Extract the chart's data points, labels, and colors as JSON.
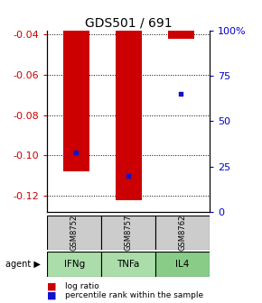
{
  "title": "GDS501 / 691",
  "samples": [
    "GSM8752",
    "GSM8757",
    "GSM8762"
  ],
  "agents": [
    "IFNg",
    "TNFa",
    "IL4"
  ],
  "log_ratios": [
    -0.108,
    -0.122,
    -0.042
  ],
  "percentile_ranks": [
    33,
    20,
    65
  ],
  "ylim_left": [
    -0.128,
    -0.038
  ],
  "ylim_right": [
    0,
    100
  ],
  "yticks_left": [
    -0.12,
    -0.1,
    -0.08,
    -0.06,
    -0.04
  ],
  "yticks_right": [
    0,
    25,
    50,
    75,
    100
  ],
  "bar_color": "#cc0000",
  "dot_color": "#1111cc",
  "bar_width": 0.5,
  "agent_colors": [
    "#aaddaa",
    "#aaddaa",
    "#88cc88"
  ],
  "sample_bg": "#cccccc",
  "title_fontsize": 10,
  "tick_fontsize": 8,
  "left_tick_color": "#cc0000",
  "right_tick_color": "#0000cc"
}
